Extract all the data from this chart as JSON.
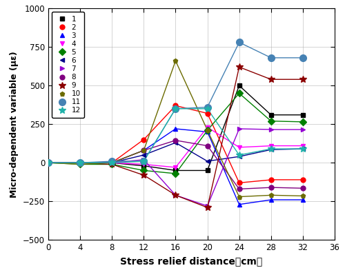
{
  "x": [
    0,
    4,
    8,
    12,
    16,
    20,
    24,
    28,
    32
  ],
  "series": [
    {
      "label": "1",
      "color": "#000000",
      "marker": "s",
      "markersize": 5,
      "y": [
        0,
        0,
        0,
        -20,
        -50,
        -50,
        500,
        310,
        310
      ]
    },
    {
      "label": "2",
      "color": "#ff0000",
      "marker": "o",
      "markersize": 5,
      "y": [
        0,
        0,
        0,
        150,
        370,
        320,
        -130,
        -110,
        -110
      ]
    },
    {
      "label": "3",
      "color": "#0000ff",
      "marker": "^",
      "markersize": 5,
      "y": [
        0,
        0,
        0,
        80,
        220,
        200,
        -270,
        -240,
        -240
      ]
    },
    {
      "label": "4",
      "color": "#ff00ff",
      "marker": "v",
      "markersize": 5,
      "y": [
        0,
        0,
        0,
        -10,
        -30,
        230,
        100,
        110,
        110
      ]
    },
    {
      "label": "5",
      "color": "#008000",
      "marker": "D",
      "markersize": 5,
      "y": [
        0,
        -10,
        -10,
        -50,
        -70,
        210,
        450,
        270,
        265
      ]
    },
    {
      "label": "6",
      "color": "#00008b",
      "marker": "<",
      "markersize": 5,
      "y": [
        0,
        0,
        0,
        50,
        130,
        10,
        40,
        85,
        90
      ]
    },
    {
      "label": "7",
      "color": "#9400d3",
      "marker": ">",
      "markersize": 5,
      "y": [
        0,
        0,
        0,
        20,
        -210,
        -280,
        220,
        215,
        215
      ]
    },
    {
      "label": "8",
      "color": "#800080",
      "marker": "o",
      "markersize": 5,
      "y": [
        0,
        0,
        0,
        80,
        145,
        110,
        -170,
        -160,
        -165
      ]
    },
    {
      "label": "9",
      "color": "#8b0000",
      "marker": "*",
      "markersize": 7,
      "y": [
        0,
        0,
        -10,
        -80,
        -210,
        -290,
        620,
        540,
        540
      ]
    },
    {
      "label": "10",
      "color": "#6b6b00",
      "marker": "p",
      "markersize": 5,
      "y": [
        0,
        -10,
        0,
        80,
        660,
        210,
        -220,
        -210,
        -215
      ]
    },
    {
      "label": "11",
      "color": "#4682b4",
      "marker": "o",
      "markersize": 7,
      "y": [
        0,
        0,
        10,
        10,
        350,
        360,
        780,
        680,
        680
      ]
    },
    {
      "label": "12",
      "color": "#20b2aa",
      "marker": "*",
      "markersize": 7,
      "y": [
        0,
        0,
        0,
        10,
        350,
        350,
        50,
        90,
        90
      ]
    }
  ],
  "xlabel": "Stress relief distance（cm）",
  "ylabel": "Micro-dependent variable (με)",
  "xlim": [
    0,
    36
  ],
  "ylim": [
    -500,
    1000
  ],
  "xticks": [
    0,
    4,
    8,
    12,
    16,
    20,
    24,
    28,
    32,
    36
  ],
  "yticks": [
    -500,
    -250,
    0,
    250,
    500,
    750,
    1000
  ],
  "grid": true,
  "legend_loc": "upper left",
  "figsize": [
    5.0,
    4.05
  ],
  "dpi": 100
}
